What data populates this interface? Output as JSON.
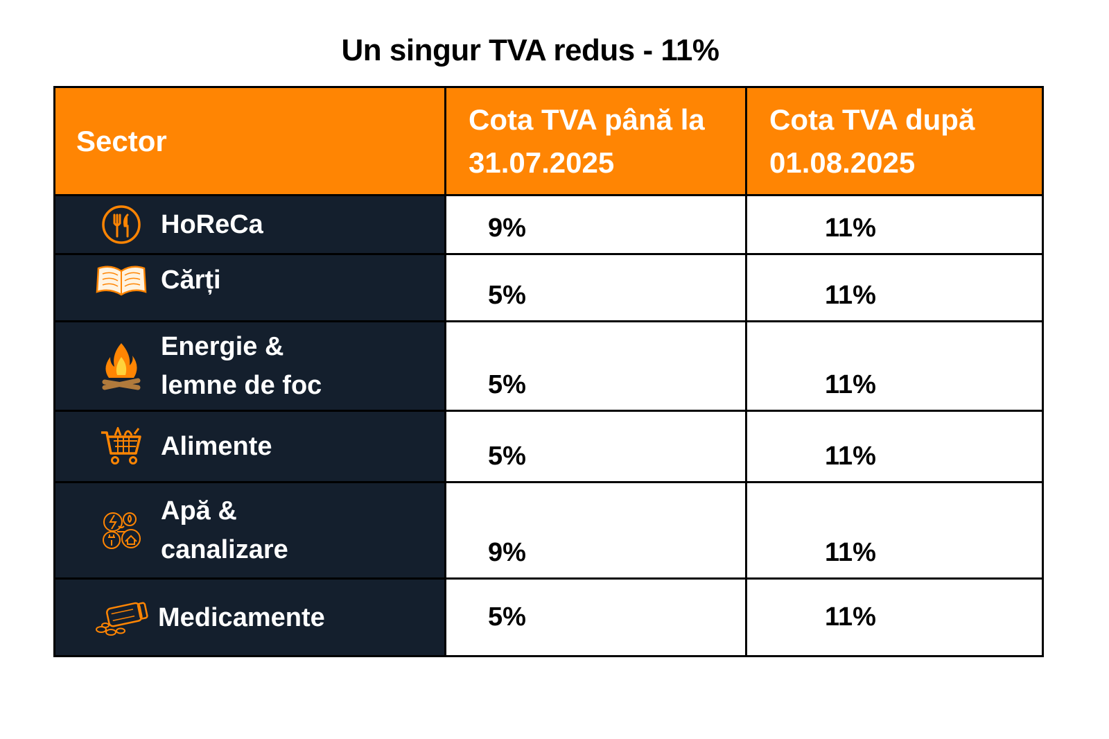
{
  "title": "Un singur TVA redus - 11%",
  "table": {
    "headers": {
      "sector": "Sector",
      "before": "Cota TVA până la 31.07.2025",
      "after": "Cota TVA după 01.08.2025"
    },
    "rows": [
      {
        "sector": "HoReCa",
        "icon": "restaurant-icon",
        "before": "9%",
        "after": "11%"
      },
      {
        "sector": "Cărți",
        "icon": "open-book-icon",
        "before": "5%",
        "after": "11%"
      },
      {
        "sector": "Energie & lemne de foc",
        "icon": "campfire-icon",
        "before": "5%",
        "after": "11%"
      },
      {
        "sector": "Alimente",
        "icon": "shopping-cart-icon",
        "before": "5%",
        "after": "11%"
      },
      {
        "sector": "Apă & canalizare",
        "icon": "utilities-icon",
        "before": "9%",
        "after": "11%"
      },
      {
        "sector": "Medicamente",
        "icon": "pill-bottle-icon",
        "before": "5%",
        "after": "11%"
      }
    ]
  },
  "colors": {
    "accent": "#ff8503",
    "sector_bg": "#141f2d",
    "text_light": "#ffffff",
    "text_dark": "#000000"
  }
}
